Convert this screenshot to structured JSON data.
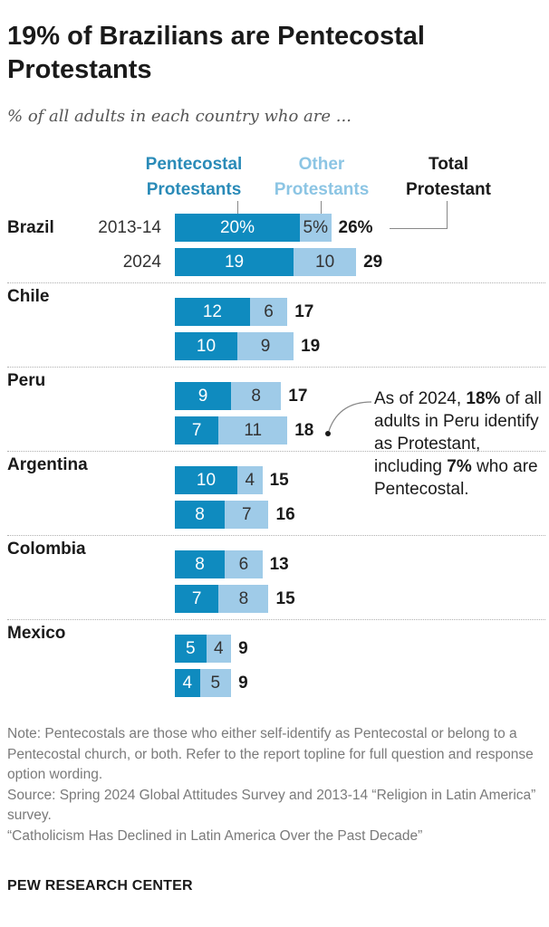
{
  "title": "19% of Brazilians are Pentecostal Protestants",
  "subtitle": "% of all adults in each country who are ...",
  "legend": {
    "pentecostal": "Pentecostal Protestants",
    "other": "Other Protestants",
    "total": "Total Protestant"
  },
  "colors": {
    "pentecostal": "#0f8bbf",
    "other": "#9fcbe8",
    "pentecostal_legend": "#2a8bb8",
    "other_legend": "#8cc5e4"
  },
  "chart_data": {
    "type": "bar",
    "orientation": "horizontal",
    "stacked": true,
    "series_names": [
      "Pentecostal Protestants",
      "Other Protestants",
      "Total Protestant"
    ],
    "groups": [
      {
        "country": "Brazil",
        "rows": [
          {
            "year": "2013-14",
            "pentecostal": 20,
            "other": 5,
            "total": 26,
            "pentecostal_label": "20%",
            "other_label": "5%",
            "total_label": "26%"
          },
          {
            "year": "2024",
            "pentecostal": 19,
            "other": 10,
            "total": 29,
            "pentecostal_label": "19",
            "other_label": "10",
            "total_label": "29"
          }
        ]
      },
      {
        "country": "Chile",
        "rows": [
          {
            "year": "2013-14",
            "pentecostal": 12,
            "other": 6,
            "total": 17,
            "pentecostal_label": "12",
            "other_label": "6",
            "total_label": "17"
          },
          {
            "year": "2024",
            "pentecostal": 10,
            "other": 9,
            "total": 19,
            "pentecostal_label": "10",
            "other_label": "9",
            "total_label": "19"
          }
        ]
      },
      {
        "country": "Peru",
        "rows": [
          {
            "year": "2013-14",
            "pentecostal": 9,
            "other": 8,
            "total": 17,
            "pentecostal_label": "9",
            "other_label": "8",
            "total_label": "17"
          },
          {
            "year": "2024",
            "pentecostal": 7,
            "other": 11,
            "total": 18,
            "pentecostal_label": "7",
            "other_label": "11",
            "total_label": "18"
          }
        ]
      },
      {
        "country": "Argentina",
        "rows": [
          {
            "year": "2013-14",
            "pentecostal": 10,
            "other": 4,
            "total": 15,
            "pentecostal_label": "10",
            "other_label": "4",
            "total_label": "15"
          },
          {
            "year": "2024",
            "pentecostal": 8,
            "other": 7,
            "total": 16,
            "pentecostal_label": "8",
            "other_label": "7",
            "total_label": "16"
          }
        ]
      },
      {
        "country": "Colombia",
        "rows": [
          {
            "year": "2013-14",
            "pentecostal": 8,
            "other": 6,
            "total": 13,
            "pentecostal_label": "8",
            "other_label": "6",
            "total_label": "13"
          },
          {
            "year": "2024",
            "pentecostal": 7,
            "other": 8,
            "total": 15,
            "pentecostal_label": "7",
            "other_label": "8",
            "total_label": "15"
          }
        ]
      },
      {
        "country": "Mexico",
        "rows": [
          {
            "year": "2013-14",
            "pentecostal": 5,
            "other": 4,
            "total": 9,
            "pentecostal_label": "5",
            "other_label": "4",
            "total_label": "9"
          },
          {
            "year": "2024",
            "pentecostal": 4,
            "other": 5,
            "total": 9,
            "pentecostal_label": "4",
            "other_label": "5",
            "total_label": "9"
          }
        ]
      }
    ],
    "year_labels_shown_for": "Brazil",
    "annotation": {
      "country": "Peru",
      "year": "2024",
      "parts": [
        {
          "text": "As of 2024, ",
          "bold": false
        },
        {
          "text": "18%",
          "bold": true
        },
        {
          "text": " of all adults in Peru identify as Protestant, including ",
          "bold": false
        },
        {
          "text": "7%",
          "bold": true
        },
        {
          "text": " who are Pentecostal.",
          "bold": false
        }
      ]
    }
  },
  "notes": {
    "note": "Note: Pentecostals are those who either self-identify as Pentecostal or belong to a Pentecostal church, or both. Refer to the report topline for full question and response option wording.",
    "source": "Source: Spring 2024 Global Attitudes Survey and 2013-14 “Religion in Latin America” survey.",
    "report": "“Catholicism Has Declined in Latin America Over the Past Decade”"
  },
  "footer": "PEW RESEARCH CENTER"
}
